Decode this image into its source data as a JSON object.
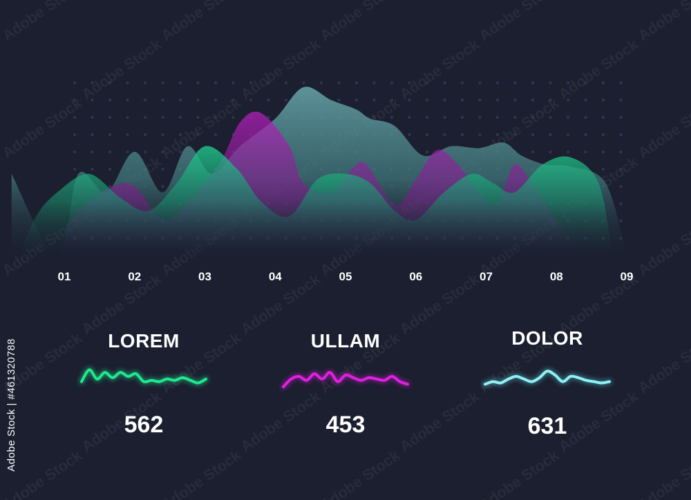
{
  "chart_data": {
    "type": "area",
    "categories": [
      "01",
      "02",
      "03",
      "04",
      "05",
      "06",
      "07",
      "08",
      "09"
    ],
    "grid": false,
    "ylim": [
      0,
      100
    ],
    "colors": {
      "background": "#1b1f2f",
      "teal": "#5fa3a8",
      "magenta": "#b01fb8",
      "green": "#1fc98a",
      "dots": "#2e3457"
    },
    "series": [
      {
        "color_key": "teal",
        "points": [
          [
            0.25,
            45
          ],
          [
            0.9,
            0
          ],
          [
            1.2,
            45
          ],
          [
            1.6,
            35
          ],
          [
            2,
            57
          ],
          [
            2.4,
            35
          ],
          [
            2.75,
            60
          ],
          [
            3.1,
            45
          ],
          [
            3.5,
            60
          ],
          [
            4,
            75
          ],
          [
            4.4,
            92
          ],
          [
            4.8,
            85
          ],
          [
            5.15,
            80
          ],
          [
            5.35,
            75
          ],
          [
            5.7,
            71
          ],
          [
            6.1,
            55
          ],
          [
            6.5,
            60
          ],
          [
            6.9,
            59
          ],
          [
            7.25,
            62
          ],
          [
            7.5,
            55
          ],
          [
            7.85,
            50
          ],
          [
            8.2,
            49
          ],
          [
            8.7,
            40
          ],
          [
            9,
            0
          ]
        ]
      },
      {
        "color_key": "magenta",
        "points": [
          [
            0.9,
            0
          ],
          [
            1.2,
            25
          ],
          [
            1.9,
            40
          ],
          [
            2.4,
            20
          ],
          [
            2.75,
            30
          ],
          [
            3.2,
            50
          ],
          [
            3.5,
            73
          ],
          [
            3.8,
            78
          ],
          [
            4.2,
            60
          ],
          [
            4.4,
            40
          ],
          [
            4.8,
            35
          ],
          [
            5.1,
            48
          ],
          [
            5.3,
            50
          ],
          [
            5.7,
            28
          ],
          [
            6.0,
            42
          ],
          [
            6.3,
            58
          ],
          [
            6.6,
            50
          ],
          [
            6.9,
            35
          ],
          [
            7.15,
            28
          ],
          [
            7.4,
            50
          ],
          [
            7.65,
            40
          ],
          [
            8.0,
            20
          ],
          [
            8.4,
            0
          ]
        ]
      },
      {
        "color_key": "green",
        "points": [
          [
            0.35,
            0
          ],
          [
            0.6,
            22
          ],
          [
            0.9,
            35
          ],
          [
            1.35,
            45
          ],
          [
            1.8,
            32
          ],
          [
            2.2,
            25
          ],
          [
            2.6,
            40
          ],
          [
            3.0,
            60
          ],
          [
            3.45,
            48
          ],
          [
            3.8,
            30
          ],
          [
            4.2,
            22
          ],
          [
            4.6,
            42
          ],
          [
            5.0,
            45
          ],
          [
            5.35,
            40
          ],
          [
            5.7,
            25
          ],
          [
            6.0,
            20
          ],
          [
            6.4,
            35
          ],
          [
            6.8,
            45
          ],
          [
            7.1,
            40
          ],
          [
            7.4,
            35
          ],
          [
            7.8,
            50
          ],
          [
            8.2,
            54
          ],
          [
            8.6,
            40
          ],
          [
            8.8,
            0
          ]
        ]
      }
    ]
  },
  "legend": [
    {
      "label": "LOREM",
      "value": "562",
      "color": "#1fe98a",
      "glow": "#1fc98a",
      "spark": [
        3,
        7.5,
        4,
        6.5,
        4.5,
        6.5,
        5,
        6,
        3,
        3.5,
        3,
        4,
        3.5,
        4.5,
        3.5,
        2.5,
        4
      ]
    },
    {
      "label": "ULLAM",
      "value": "453",
      "color": "#e21fe0",
      "glow": "#b01fb8",
      "spark": [
        1,
        4,
        5,
        3.5,
        6,
        4,
        6.5,
        3,
        5.5,
        4.5,
        3.5,
        4.5,
        4,
        3.5,
        5,
        3,
        2
      ]
    },
    {
      "label": "DOLOR",
      "value": "631",
      "color": "#8ff2f2",
      "glow": "#4fb0c0",
      "spark": [
        2,
        3,
        2.5,
        4,
        5,
        4,
        3,
        4.5,
        7,
        5.5,
        3,
        5,
        4.5,
        3.5,
        3,
        2.5,
        3
      ]
    }
  ],
  "side_credit": "Adobe Stock | #461320788",
  "watermark": "Adobe Stock"
}
